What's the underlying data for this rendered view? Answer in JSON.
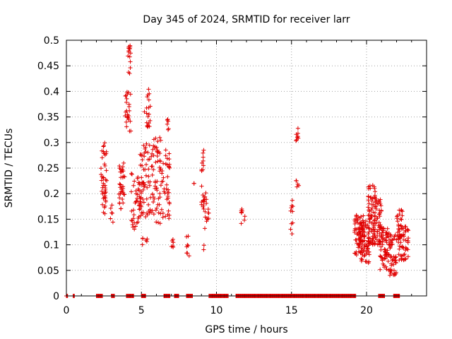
{
  "chart_data": {
    "type": "scatter",
    "title": "Day 345 of 2024, SRMTID for receiver larr",
    "xlabel": "GPS time / hours",
    "ylabel": "SRMTID / TECUs",
    "xlim": [
      0,
      24
    ],
    "ylim": [
      0,
      0.5
    ],
    "x_ticks": [
      0,
      5,
      10,
      15,
      20
    ],
    "x_tick_labels": [
      "0",
      "5",
      "10",
      "15",
      "20"
    ],
    "y_ticks": [
      0,
      0.05,
      0.1,
      0.15,
      0.2,
      0.25,
      0.3,
      0.35,
      0.4,
      0.45,
      0.5
    ],
    "y_tick_labels": [
      "0",
      "0.05",
      "0.1",
      "0.15",
      "0.2",
      "0.25",
      "0.3",
      "0.35",
      "0.4",
      "0.45",
      "0.5"
    ],
    "grid": true,
    "marker": "+",
    "color": "#e00000",
    "series": [
      {
        "name": "SRMTID",
        "clusters": [
          {
            "x": [
              2.3,
              2.7
            ],
            "y": [
              0.16,
              0.3
            ],
            "n": 45
          },
          {
            "x": [
              2.9,
              3.1
            ],
            "y": [
              0.1,
              0.19
            ],
            "n": 6
          },
          {
            "x": [
              3.5,
              3.9
            ],
            "y": [
              0.17,
              0.26
            ],
            "n": 35
          },
          {
            "x": [
              3.9,
              4.3
            ],
            "y": [
              0.32,
              0.4
            ],
            "n": 25
          },
          {
            "x": [
              4.1,
              4.3
            ],
            "y": [
              0.43,
              0.49
            ],
            "n": 15
          },
          {
            "x": [
              4.3,
              5.0
            ],
            "y": [
              0.13,
              0.24
            ],
            "n": 45
          },
          {
            "x": [
              4.9,
              5.6
            ],
            "y": [
              0.15,
              0.3
            ],
            "n": 55
          },
          {
            "x": [
              5.0,
              5.4
            ],
            "y": [
              0.1,
              0.13
            ],
            "n": 6
          },
          {
            "x": [
              5.2,
              5.6
            ],
            "y": [
              0.33,
              0.41
            ],
            "n": 20
          },
          {
            "x": [
              5.6,
              6.3
            ],
            "y": [
              0.14,
              0.31
            ],
            "n": 60
          },
          {
            "x": [
              6.3,
              6.9
            ],
            "y": [
              0.15,
              0.29
            ],
            "n": 40
          },
          {
            "x": [
              6.7,
              6.9
            ],
            "y": [
              0.32,
              0.35
            ],
            "n": 6
          },
          {
            "x": [
              7.0,
              7.2
            ],
            "y": [
              0.09,
              0.12
            ],
            "n": 6
          },
          {
            "x": [
              8.0,
              8.2
            ],
            "y": [
              0.07,
              0.12
            ],
            "n": 8
          },
          {
            "x": [
              8.5,
              8.6
            ],
            "y": [
              0.22,
              0.22
            ],
            "n": 2
          },
          {
            "x": [
              9.0,
              9.2
            ],
            "y": [
              0.17,
              0.3
            ],
            "n": 20
          },
          {
            "x": [
              9.2,
              9.5
            ],
            "y": [
              0.13,
              0.21
            ],
            "n": 15
          },
          {
            "x": [
              9.1,
              9.2
            ],
            "y": [
              0.09,
              0.1
            ],
            "n": 2
          },
          {
            "x": [
              11.6,
              11.9
            ],
            "y": [
              0.14,
              0.18
            ],
            "n": 8
          },
          {
            "x": [
              14.9,
              15.1
            ],
            "y": [
              0.12,
              0.19
            ],
            "n": 10
          },
          {
            "x": [
              15.3,
              15.5
            ],
            "y": [
              0.21,
              0.23
            ],
            "n": 5
          },
          {
            "x": [
              15.3,
              15.5
            ],
            "y": [
              0.3,
              0.33
            ],
            "n": 8
          },
          {
            "x": [
              19.2,
              19.8
            ],
            "y": [
              0.08,
              0.16
            ],
            "n": 70
          },
          {
            "x": [
              19.6,
              20.2
            ],
            "y": [
              0.06,
              0.15
            ],
            "n": 60
          },
          {
            "x": [
              20.1,
              20.6
            ],
            "y": [
              0.1,
              0.22
            ],
            "n": 70
          },
          {
            "x": [
              20.5,
              21.0
            ],
            "y": [
              0.1,
              0.19
            ],
            "n": 55
          },
          {
            "x": [
              20.9,
              21.5
            ],
            "y": [
              0.05,
              0.14
            ],
            "n": 60
          },
          {
            "x": [
              21.5,
              22.0
            ],
            "y": [
              0.04,
              0.12
            ],
            "n": 45
          },
          {
            "x": [
              22.0,
              22.4
            ],
            "y": [
              0.11,
              0.17
            ],
            "n": 25
          },
          {
            "x": [
              22.1,
              22.8
            ],
            "y": [
              0.07,
              0.14
            ],
            "n": 55
          }
        ],
        "zero_ranges": [
          [
            0.0,
            0.1
          ],
          [
            0.45,
            0.55
          ],
          [
            2.0,
            2.4
          ],
          [
            3.0,
            3.2
          ],
          [
            4.0,
            4.5
          ],
          [
            5.0,
            5.3
          ],
          [
            6.5,
            6.9
          ],
          [
            7.2,
            7.5
          ],
          [
            8.0,
            8.4
          ],
          [
            9.5,
            10.8
          ],
          [
            11.3,
            12.0
          ],
          [
            12.0,
            19.3
          ],
          [
            20.8,
            21.2
          ],
          [
            21.8,
            22.2
          ]
        ]
      }
    ]
  }
}
